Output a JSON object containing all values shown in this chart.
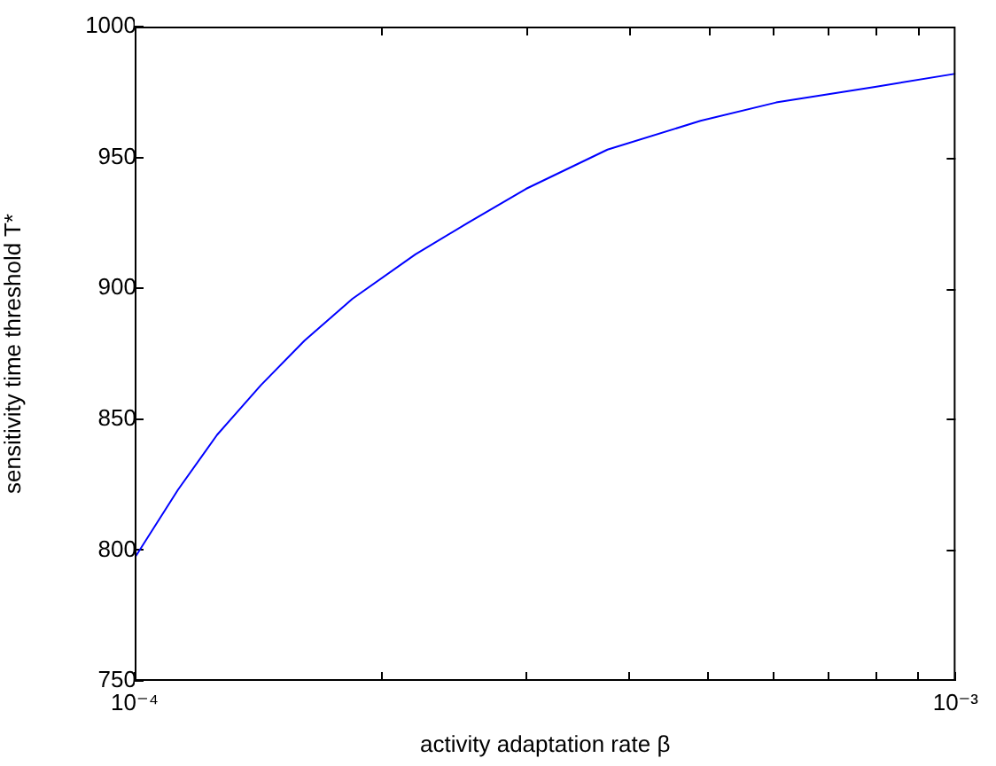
{
  "chart_data": {
    "type": "line",
    "xlabel": "activity adaptation rate β",
    "ylabel": "sensitivity time threshold T*",
    "x": [
      0.0001,
      0.0001129,
      0.000126,
      0.0001425,
      0.000161,
      0.0001842,
      0.0002198,
      0.0002546,
      0.0002997,
      0.0003767,
      0.000489,
      0.0006045,
      0.000798,
      0.001
    ],
    "series": [
      {
        "color": "#0000ff",
        "values": [
          797,
          823,
          844,
          863,
          880,
          896,
          913,
          925,
          938,
          953,
          964,
          971,
          977,
          982
        ]
      }
    ],
    "log": "x",
    "xlim": [
      0.0001,
      0.001
    ],
    "xticks": [
      {
        "value": 0.0001,
        "label": "10⁻⁴"
      },
      {
        "value": 0.0002,
        "label": null
      },
      {
        "value": 0.0003,
        "label": null
      },
      {
        "value": 0.0004,
        "label": null
      },
      {
        "value": 0.0005,
        "label": null
      },
      {
        "value": 0.0006,
        "label": null
      },
      {
        "value": 0.0007,
        "label": null
      },
      {
        "value": 0.0008,
        "label": null
      },
      {
        "value": 0.0009,
        "label": null
      },
      {
        "value": 0.001,
        "label": "10⁻³"
      }
    ],
    "ylim": [
      750,
      1000
    ],
    "yticks": [
      750,
      800,
      850,
      900,
      950,
      1000
    ],
    "grid": false,
    "legend": false
  }
}
